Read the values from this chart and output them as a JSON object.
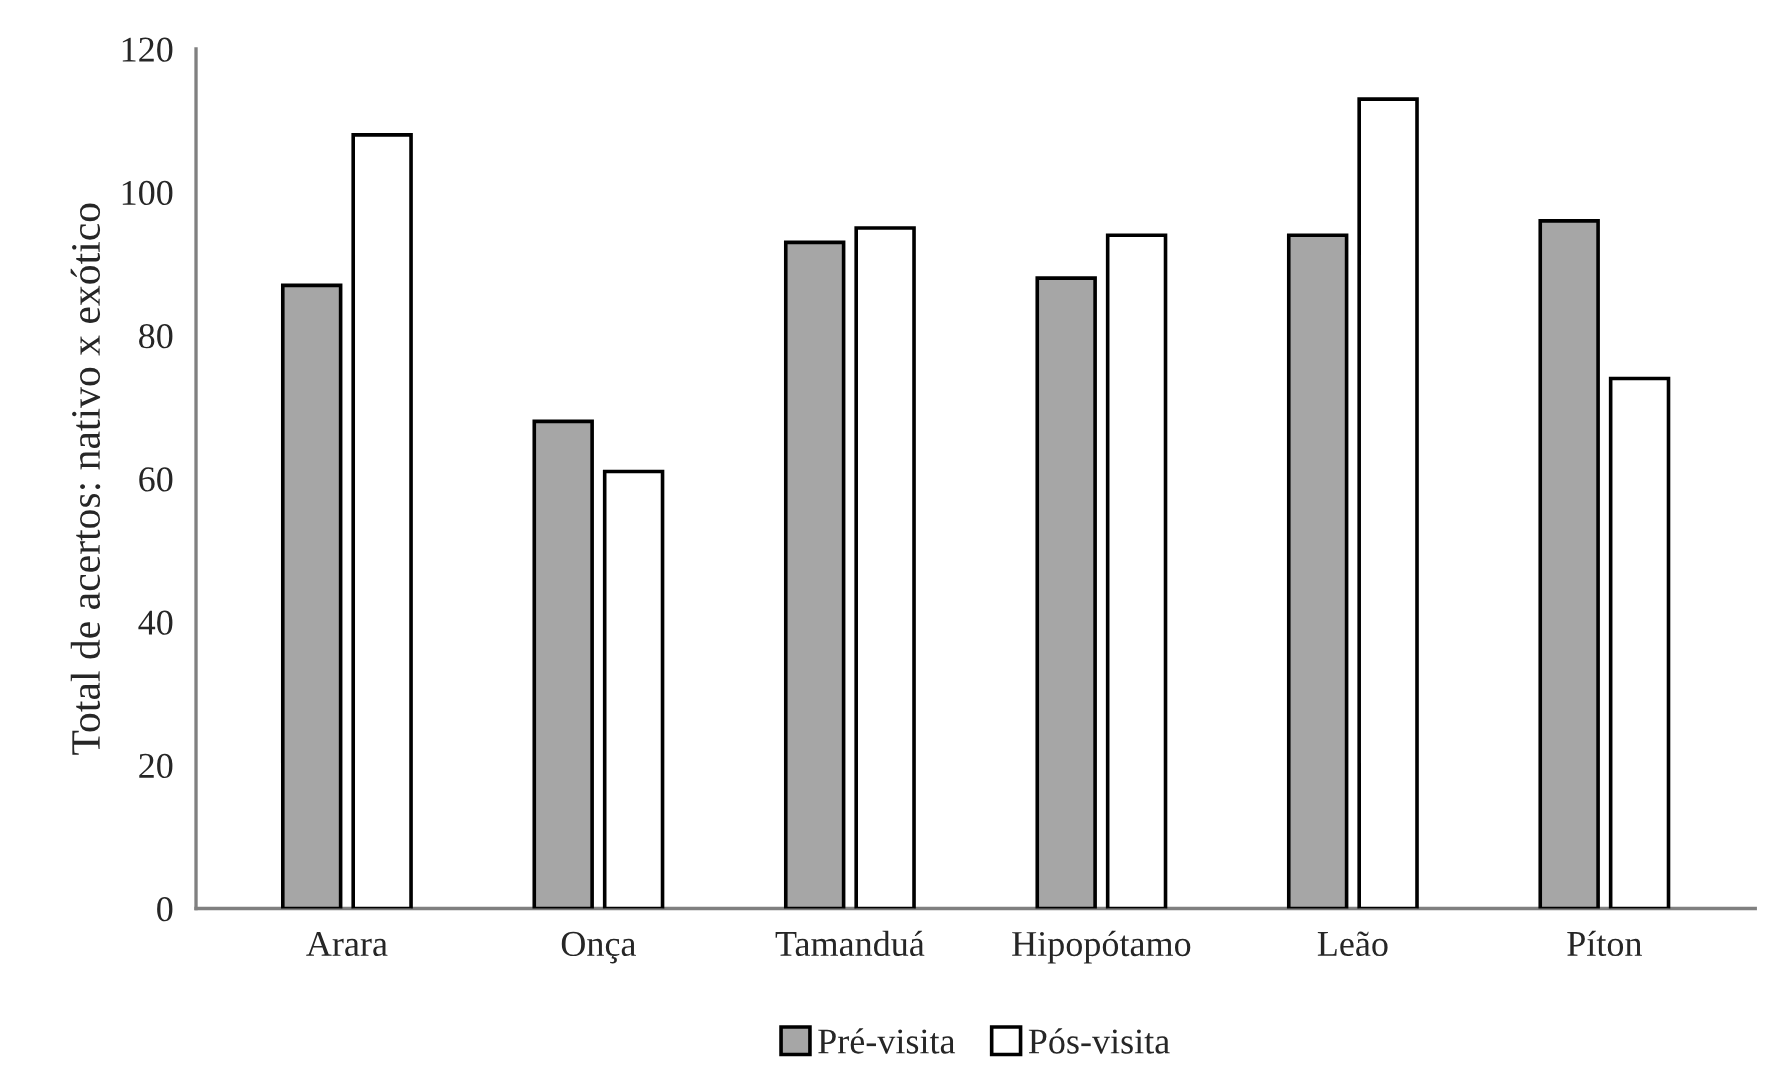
{
  "chart_data": {
    "type": "bar",
    "ylabel": "Total de acertos: nativo x exótico",
    "categories": [
      "Arara",
      "Onça",
      "Tamanduá",
      "Hipopótamo",
      "Leão",
      "Píton"
    ],
    "series": [
      {
        "name": "Pré-visita",
        "color": "#a6a6a6",
        "values": [
          87,
          68,
          93,
          88,
          94,
          96
        ]
      },
      {
        "name": "Pós-visita",
        "color": "#ffffff",
        "values": [
          108,
          61,
          95,
          94,
          113,
          74
        ]
      }
    ],
    "ylim": [
      0,
      120
    ],
    "yticks": [
      0,
      20,
      40,
      60,
      80,
      100,
      120
    ],
    "grid": false,
    "legend": "bottom"
  }
}
